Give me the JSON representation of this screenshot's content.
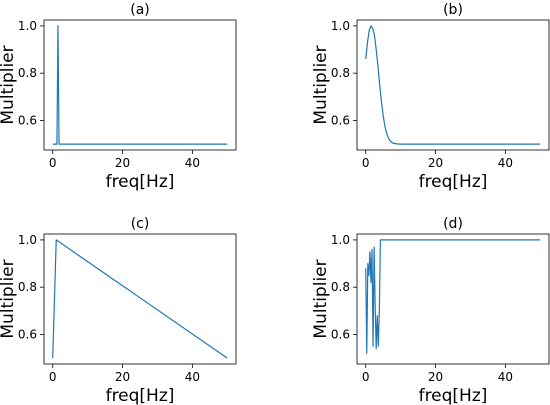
{
  "chart_data": [
    {
      "type": "line",
      "title": "(a)",
      "xlabel": "freq[Hz]",
      "ylabel": "Multiplier",
      "xlim": [
        -2.5,
        52.5
      ],
      "ylim": [
        0.475,
        1.025
      ],
      "xticks": [
        0,
        20,
        40
      ],
      "yticks": [
        0.6,
        0.8,
        1.0
      ],
      "yticklabels": [
        "0.6",
        "0.8",
        "1.0"
      ],
      "series": [
        {
          "x": [
            0,
            1.2,
            1.5,
            1.8,
            2.2,
            50
          ],
          "y": [
            0.5,
            0.5,
            1.0,
            0.5,
            0.5,
            0.5
          ]
        }
      ]
    },
    {
      "type": "line",
      "title": "(b)",
      "xlabel": "freq[Hz]",
      "ylabel": "Multiplier",
      "xlim": [
        -2.5,
        52.5
      ],
      "ylim": [
        0.475,
        1.025
      ],
      "xticks": [
        0,
        20,
        40
      ],
      "yticks": [
        0.6,
        0.8,
        1.0
      ],
      "yticklabels": [
        "0.6",
        "0.8",
        "1.0"
      ],
      "series": [
        {
          "x": [
            0,
            0.5,
            1,
            1.5,
            2,
            2.5,
            3,
            3.5,
            4,
            4.5,
            5,
            5.5,
            6,
            6.5,
            7,
            7.5,
            8,
            9,
            10,
            12,
            15,
            20,
            30,
            40,
            50
          ],
          "y": [
            0.86,
            0.93,
            0.98,
            1.0,
            0.99,
            0.96,
            0.9,
            0.83,
            0.75,
            0.68,
            0.62,
            0.575,
            0.545,
            0.525,
            0.513,
            0.507,
            0.503,
            0.501,
            0.5,
            0.5,
            0.5,
            0.5,
            0.5,
            0.5,
            0.5
          ]
        }
      ]
    },
    {
      "type": "line",
      "title": "(c)",
      "xlabel": "freq[Hz]",
      "ylabel": "Multiplier",
      "xlim": [
        -2.5,
        52.5
      ],
      "ylim": [
        0.475,
        1.025
      ],
      "xticks": [
        0,
        20,
        40
      ],
      "yticks": [
        0.6,
        0.8,
        1.0
      ],
      "yticklabels": [
        "0.6",
        "0.8",
        "1.0"
      ],
      "series": [
        {
          "x": [
            0,
            1,
            50
          ],
          "y": [
            0.5,
            1.0,
            0.5
          ]
        }
      ]
    },
    {
      "type": "line",
      "title": "(d)",
      "xlabel": "freq[Hz]",
      "ylabel": "Multiplier",
      "xlim": [
        -2.5,
        52.5
      ],
      "ylim": [
        0.475,
        1.025
      ],
      "xticks": [
        0,
        20,
        40
      ],
      "yticks": [
        0.6,
        0.8,
        1.0
      ],
      "yticklabels": [
        "0.6",
        "0.8",
        "1.0"
      ],
      "series": [
        {
          "x": [
            0,
            0.3,
            0.6,
            0.9,
            1.2,
            1.5,
            1.8,
            2.1,
            2.4,
            2.7,
            3.0,
            3.3,
            3.6,
            3.9,
            4.2,
            50
          ],
          "y": [
            0.88,
            0.52,
            0.9,
            0.85,
            0.95,
            0.82,
            0.96,
            0.55,
            0.97,
            0.72,
            0.54,
            0.68,
            0.55,
            0.7,
            1.0,
            1.0
          ]
        }
      ]
    }
  ]
}
